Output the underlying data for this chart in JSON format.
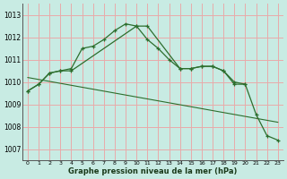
{
  "xlabel": "Graphe pression niveau de la mer (hPa)",
  "background_color": "#c8ebe3",
  "grid_color": "#e8aaaa",
  "line_color": "#2d6e2d",
  "ylim": [
    1006.5,
    1013.5
  ],
  "xlim": [
    -0.5,
    23.5
  ],
  "yticks": [
    1007,
    1008,
    1009,
    1010,
    1011,
    1012,
    1013
  ],
  "xticks": [
    0,
    1,
    2,
    3,
    4,
    5,
    6,
    7,
    8,
    9,
    10,
    11,
    12,
    13,
    14,
    15,
    16,
    17,
    18,
    19,
    20,
    21,
    22,
    23
  ],
  "series1_x": [
    0,
    1,
    2,
    3,
    4,
    5,
    6,
    7,
    8,
    9,
    10,
    11,
    12,
    13,
    14,
    15,
    16,
    17,
    18,
    19,
    20
  ],
  "series1_y": [
    1009.6,
    1009.9,
    1010.4,
    1010.5,
    1010.6,
    1011.5,
    1011.6,
    1011.9,
    1012.3,
    1012.6,
    1012.5,
    1011.9,
    1011.5,
    1011.0,
    1010.6,
    1010.6,
    1010.7,
    1010.7,
    1010.5,
    1010.0,
    1009.9
  ],
  "series2_x": [
    0,
    1,
    2,
    3,
    4,
    10,
    11,
    14,
    15,
    16,
    17,
    18,
    19,
    20,
    21,
    22,
    23
  ],
  "series2_y": [
    1009.6,
    1009.9,
    1010.4,
    1010.5,
    1010.5,
    1012.5,
    1012.5,
    1010.6,
    1010.6,
    1010.7,
    1010.7,
    1010.5,
    1009.9,
    1009.9,
    1008.55,
    1007.6,
    1007.4
  ],
  "series3_x": [
    0,
    23
  ],
  "series3_y": [
    1010.2,
    1008.2
  ]
}
